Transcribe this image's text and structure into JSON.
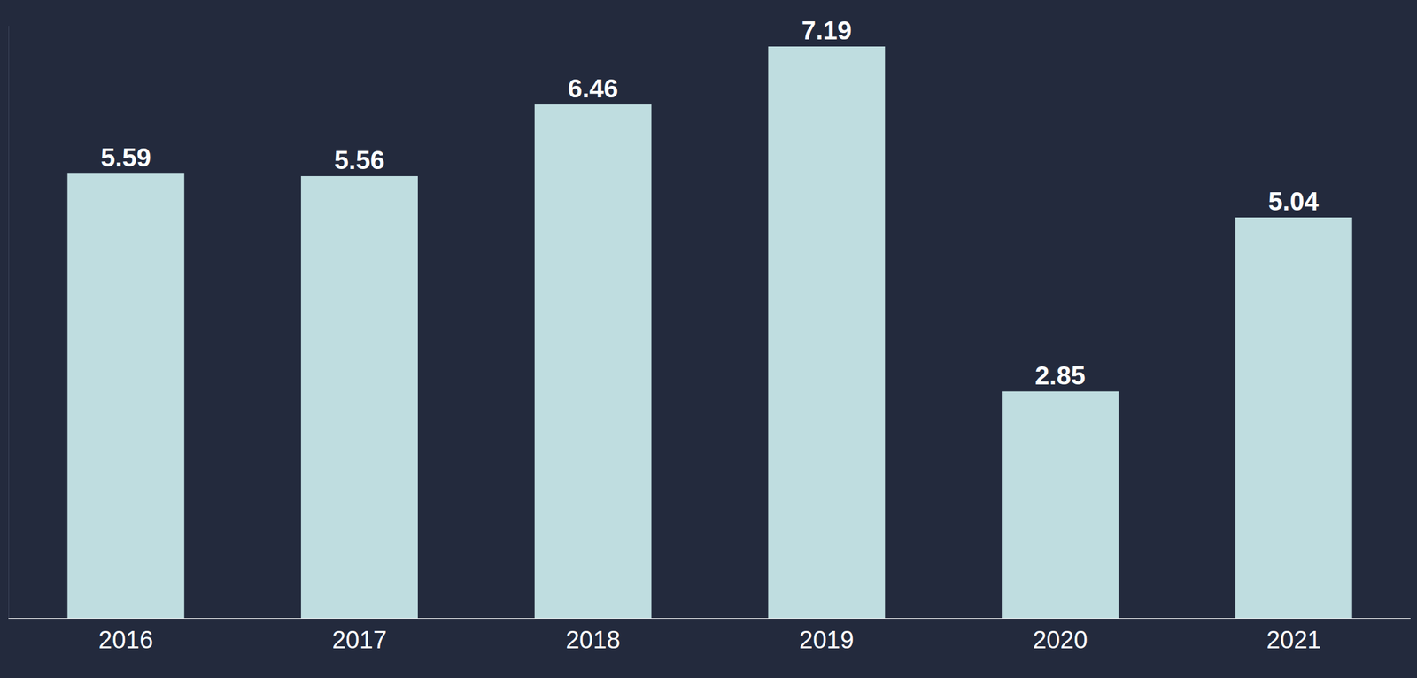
{
  "chart_data": {
    "type": "bar",
    "categories": [
      "2016",
      "2017",
      "2018",
      "2019",
      "2020",
      "2021"
    ],
    "values": [
      5.59,
      5.56,
      6.46,
      7.19,
      2.85,
      5.04
    ],
    "color": "#bfdde0",
    "ylim": [
      0,
      7.45
    ],
    "grid": false,
    "data_labels": true,
    "tick_labels": "x"
  }
}
